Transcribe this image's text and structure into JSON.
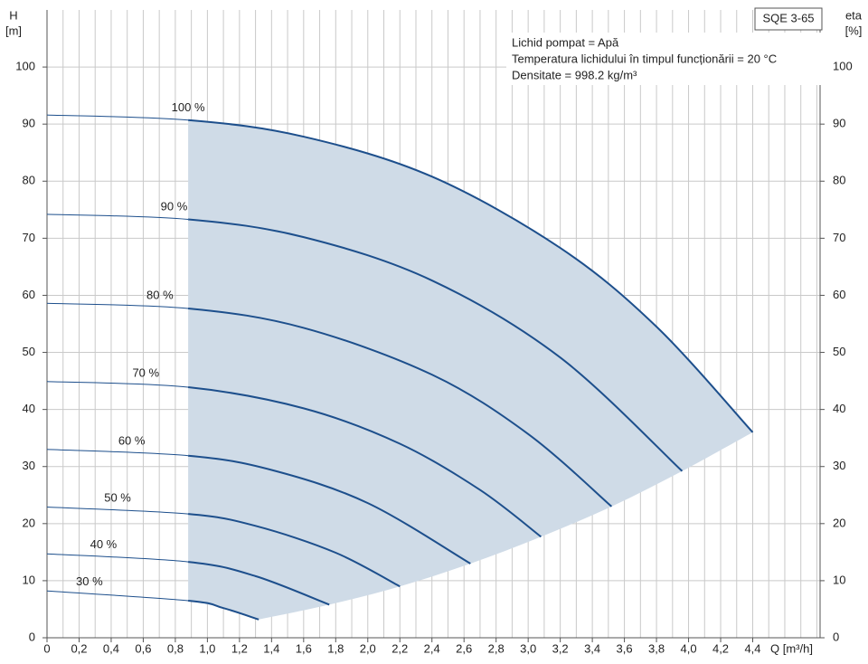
{
  "chart_data": {
    "type": "line",
    "title": "SQE 3-65",
    "notes": [
      "Lichid pompat = Apă",
      "Temperatura lichidului în timpul funcționării = 20 °C",
      "Densitate = 998.2 kg/m³"
    ],
    "xlabel": "Q [m³/h]",
    "ylabel": "H",
    "yunit": "[m]",
    "y2label": "eta",
    "y2unit": "[%]",
    "xlim": [
      0,
      4.82
    ],
    "ylim": [
      0,
      110
    ],
    "y2lim": [
      0,
      110
    ],
    "xticks": [
      0,
      {
        "value": 0.2,
        "label": "0,2"
      },
      {
        "value": 0.4,
        "label": "0,4"
      },
      {
        "value": 0.6,
        "label": "0,6"
      },
      {
        "value": 0.8,
        "label": "0,8"
      },
      {
        "value": 1.0,
        "label": "1,0"
      },
      {
        "value": 1.2,
        "label": "1,2"
      },
      {
        "value": 1.4,
        "label": "1,4"
      },
      {
        "value": 1.6,
        "label": "1,6"
      },
      {
        "value": 1.8,
        "label": "1,8"
      },
      {
        "value": 2.0,
        "label": "2,0"
      },
      {
        "value": 2.2,
        "label": "2,2"
      },
      {
        "value": 2.4,
        "label": "2,4"
      },
      {
        "value": 2.6,
        "label": "2,6"
      },
      {
        "value": 2.8,
        "label": "2,8"
      },
      {
        "value": 3.0,
        "label": "3,0"
      },
      {
        "value": 3.2,
        "label": "3,2"
      },
      {
        "value": 3.4,
        "label": "3,4"
      },
      {
        "value": 3.6,
        "label": "3,6"
      },
      {
        "value": 3.8,
        "label": "3,8"
      },
      {
        "value": 4.0,
        "label": "4,0"
      },
      {
        "value": 4.2,
        "label": "4,2"
      },
      {
        "value": 4.4,
        "label": "4,4"
      }
    ],
    "yticks": [
      0,
      10,
      20,
      30,
      40,
      50,
      60,
      70,
      80,
      90,
      100
    ],
    "y2ticks": [
      0,
      10,
      20,
      30,
      40,
      50,
      60,
      70,
      80,
      90,
      100
    ],
    "grid": true,
    "color": "#1d4f8c",
    "range_color": "#cfdbe7",
    "series": [
      {
        "name": "100 %",
        "x": [
          0,
          0.88,
          1.6,
          2.4,
          3.2,
          3.8,
          4.4
        ],
        "values": [
          91.6,
          90.7,
          87.8,
          80.8,
          68.3,
          54.5,
          36.0
        ]
      },
      {
        "name": "90 %",
        "x": [
          0,
          0.88,
          1.6,
          2.4,
          3.2,
          3.96
        ],
        "values": [
          74.2,
          73.3,
          70.2,
          62.6,
          49.1,
          29.2
        ]
      },
      {
        "name": "80 %",
        "x": [
          0,
          0.88,
          1.6,
          2.4,
          3.0,
          3.52
        ],
        "values": [
          58.6,
          57.7,
          54.3,
          46.1,
          35.7,
          23.0
        ]
      },
      {
        "name": "70 %",
        "x": [
          0,
          0.88,
          1.6,
          2.2,
          2.7,
          3.08
        ],
        "values": [
          44.9,
          43.9,
          40.2,
          34.0,
          25.9,
          17.7
        ]
      },
      {
        "name": "60 %",
        "x": [
          0,
          0.88,
          1.4,
          2.0,
          2.64
        ],
        "values": [
          33.0,
          31.9,
          29.4,
          23.6,
          13.0
        ]
      },
      {
        "name": "50 %",
        "x": [
          0,
          0.88,
          1.3,
          1.8,
          2.2
        ],
        "values": [
          22.9,
          21.7,
          19.6,
          14.9,
          9.0
        ]
      },
      {
        "name": "40 %",
        "x": [
          0,
          0.88,
          1.3,
          1.76
        ],
        "values": [
          14.7,
          13.3,
          10.8,
          5.8
        ]
      },
      {
        "name": "30 %",
        "x": [
          0,
          0.88,
          1.1,
          1.32
        ],
        "values": [
          8.2,
          6.5,
          5.2,
          3.2
        ]
      }
    ]
  }
}
